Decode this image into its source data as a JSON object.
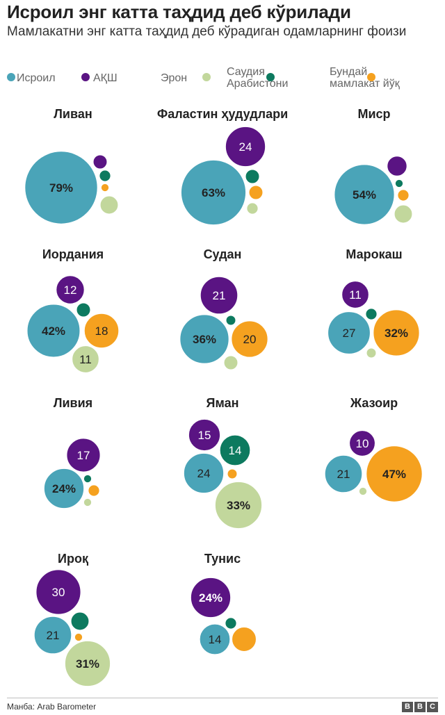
{
  "title": "Исроил энг катта таҳдид деб кўрилади",
  "subtitle": "Мамлакатни энг катта таҳдид деб кўрадиган одамларнинг фоизи",
  "colors": {
    "israel": "#4aa4b8",
    "usa": "#5a1483",
    "iran": "#0d7a5f",
    "saudi": "#f5a11f",
    "none": "#c2d79c"
  },
  "legend": [
    {
      "key": "israel",
      "label": "Исроил"
    },
    {
      "key": "usa",
      "label": "АҚШ"
    },
    {
      "key": "none",
      "label": "Эрон"
    },
    {
      "key": "iran",
      "label": "Саудия\nАрабистони"
    },
    {
      "key": "saudi",
      "label": "Бундай\nмамлакат йўқ"
    }
  ],
  "chart_data": {
    "type": "bubble",
    "series": [
      "israel",
      "usa",
      "iran",
      "saudi",
      "none"
    ],
    "countries": [
      {
        "name": "Ливан",
        "values": {
          "israel": 79,
          "usa": 3,
          "iran": 2,
          "saudi": 1,
          "none": 5
        },
        "labels": {
          "israel": "79%"
        }
      },
      {
        "name": "Фаластин ҳудудлари",
        "values": {
          "israel": 63,
          "usa": 24,
          "iran": 3,
          "saudi": 3,
          "none": 2
        },
        "labels": {
          "israel": "63%",
          "usa": "24"
        }
      },
      {
        "name": "Миср",
        "values": {
          "israel": 54,
          "usa": 6,
          "iran": 1,
          "saudi": 2,
          "none": 5
        },
        "labels": {
          "israel": "54%"
        }
      },
      {
        "name": "Иордания",
        "values": {
          "israel": 42,
          "usa": 12,
          "iran": 3,
          "saudi": 18,
          "none": 11
        },
        "labels": {
          "israel": "42%",
          "usa": "12",
          "saudi": "18",
          "none": "11"
        }
      },
      {
        "name": "Судан",
        "values": {
          "israel": 36,
          "usa": 21,
          "iran": 1.5,
          "saudi": 20,
          "none": 3
        },
        "labels": {
          "israel": "36%",
          "usa": "21",
          "saudi": "20"
        }
      },
      {
        "name": "Марокаш",
        "values": {
          "israel": 27,
          "usa": 11,
          "iran": 2,
          "saudi": 32,
          "none": 1.5
        },
        "labels": {
          "israel": "27",
          "usa": "11",
          "saudi": "32%"
        }
      },
      {
        "name": "Ливия",
        "values": {
          "israel": 24,
          "usa": 17,
          "iran": 1,
          "saudi": 2,
          "none": 1
        },
        "labels": {
          "israel": "24%",
          "usa": "17"
        }
      },
      {
        "name": "Яман",
        "values": {
          "israel": 24,
          "usa": 15,
          "iran": 14,
          "saudi": 1.5,
          "none": 33
        },
        "labels": {
          "israel": "24",
          "usa": "15",
          "iran": "14",
          "none": "33%"
        }
      },
      {
        "name": "Жазоир",
        "values": {
          "israel": 21,
          "usa": 10,
          "iran": 0,
          "saudi": 47,
          "none": 1
        },
        "labels": {
          "israel": "21",
          "usa": "10",
          "saudi": "47%"
        }
      },
      {
        "name": "Ироқ",
        "values": {
          "israel": 21,
          "usa": 30,
          "iran": 5,
          "saudi": 1,
          "none": 31
        },
        "labels": {
          "israel": "21",
          "usa": "30",
          "none": "31%"
        }
      },
      {
        "name": "Тунис",
        "values": {
          "israel": 14,
          "usa": 24,
          "iran": 2,
          "saudi": 9,
          "none": 0
        },
        "labels": {
          "israel": "14",
          "usa": "24%"
        }
      }
    ]
  },
  "footer": {
    "source": "Манба: Arab Barometer",
    "logo": [
      "B",
      "B",
      "C"
    ]
  }
}
